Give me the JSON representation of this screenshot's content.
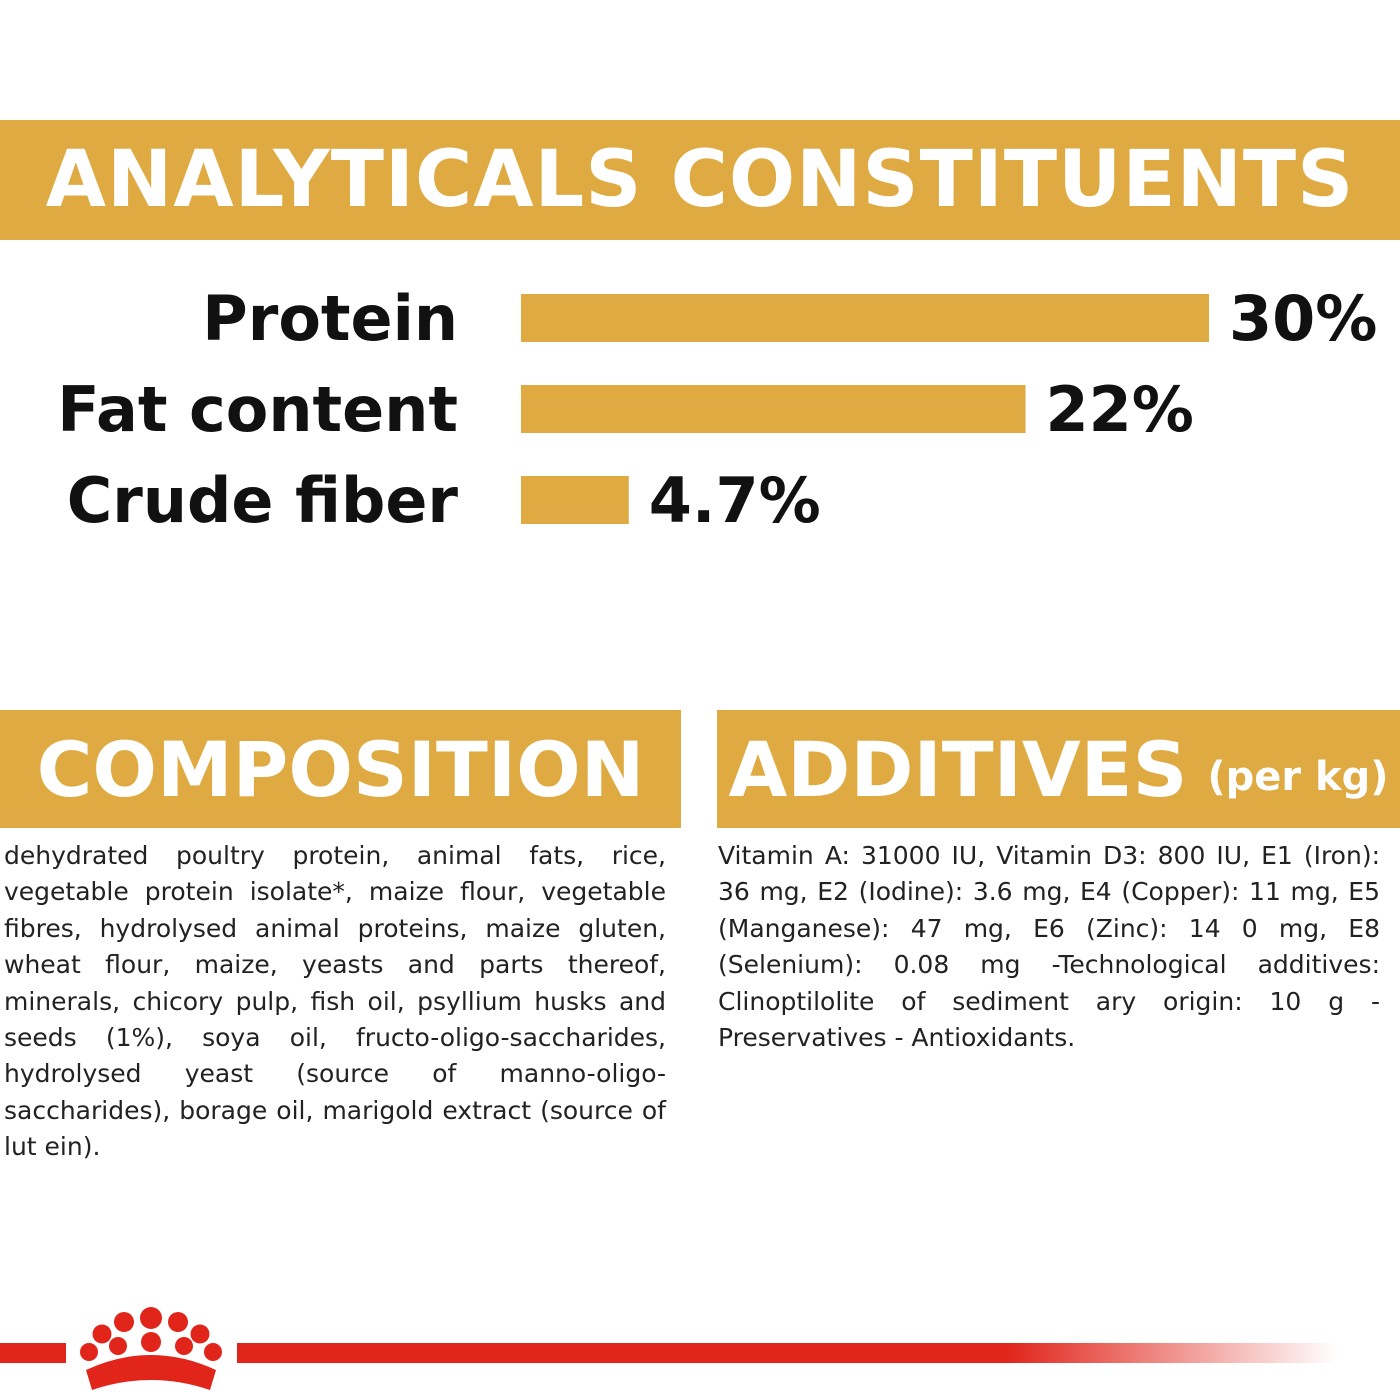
{
  "colors": {
    "accent": "#DEAA41",
    "brand_red": "#E1251B",
    "text": "#111111",
    "background": "#ffffff"
  },
  "analytical": {
    "title": "ANALYTICALS CONSTITUENTS"
  },
  "chart_data": {
    "type": "bar",
    "orientation": "horizontal",
    "categories": [
      "Protein",
      "Fat content",
      "Crude fiber"
    ],
    "values": [
      30,
      22,
      4.7
    ],
    "value_labels": [
      "30%",
      "22%",
      "4.7%"
    ],
    "unit": "%",
    "xlim": [
      0,
      30
    ],
    "grid": false
  },
  "composition": {
    "title": "COMPOSITION",
    "text": "dehydrated poultry protein, animal fats, rice, vegetable protein isolate*, maize flour, vegetable fibres, hydrolysed animal proteins, maize gluten, wheat flour, maize, yeasts and parts thereof, minerals, chicory pulp, fish oil, psyllium husks and seeds (1%), soya oil, fructo-oligo-saccharides, hydrolysed yeast (source of manno-oligo-saccharides), borage oil, marigold extract (source of lut ein)."
  },
  "additives": {
    "title": "ADDITIVES",
    "unit": "(per kg)",
    "text": "Vitamin A: 31000 IU, Vitamin D3: 800 IU, E1 (Iron): 36 mg, E2 (Iodine): 3.6 mg, E4 (Copper): 11 mg, E5 (Manganese): 47 mg, E6 (Zinc): 14 0 mg, E8 (Selenium): 0.08 mg -Technological additives: Clinoptilolite of sediment ary origin: 10 g - Preservatives - Antioxidants."
  },
  "footer": {
    "logo_icon": "crown-icon"
  }
}
